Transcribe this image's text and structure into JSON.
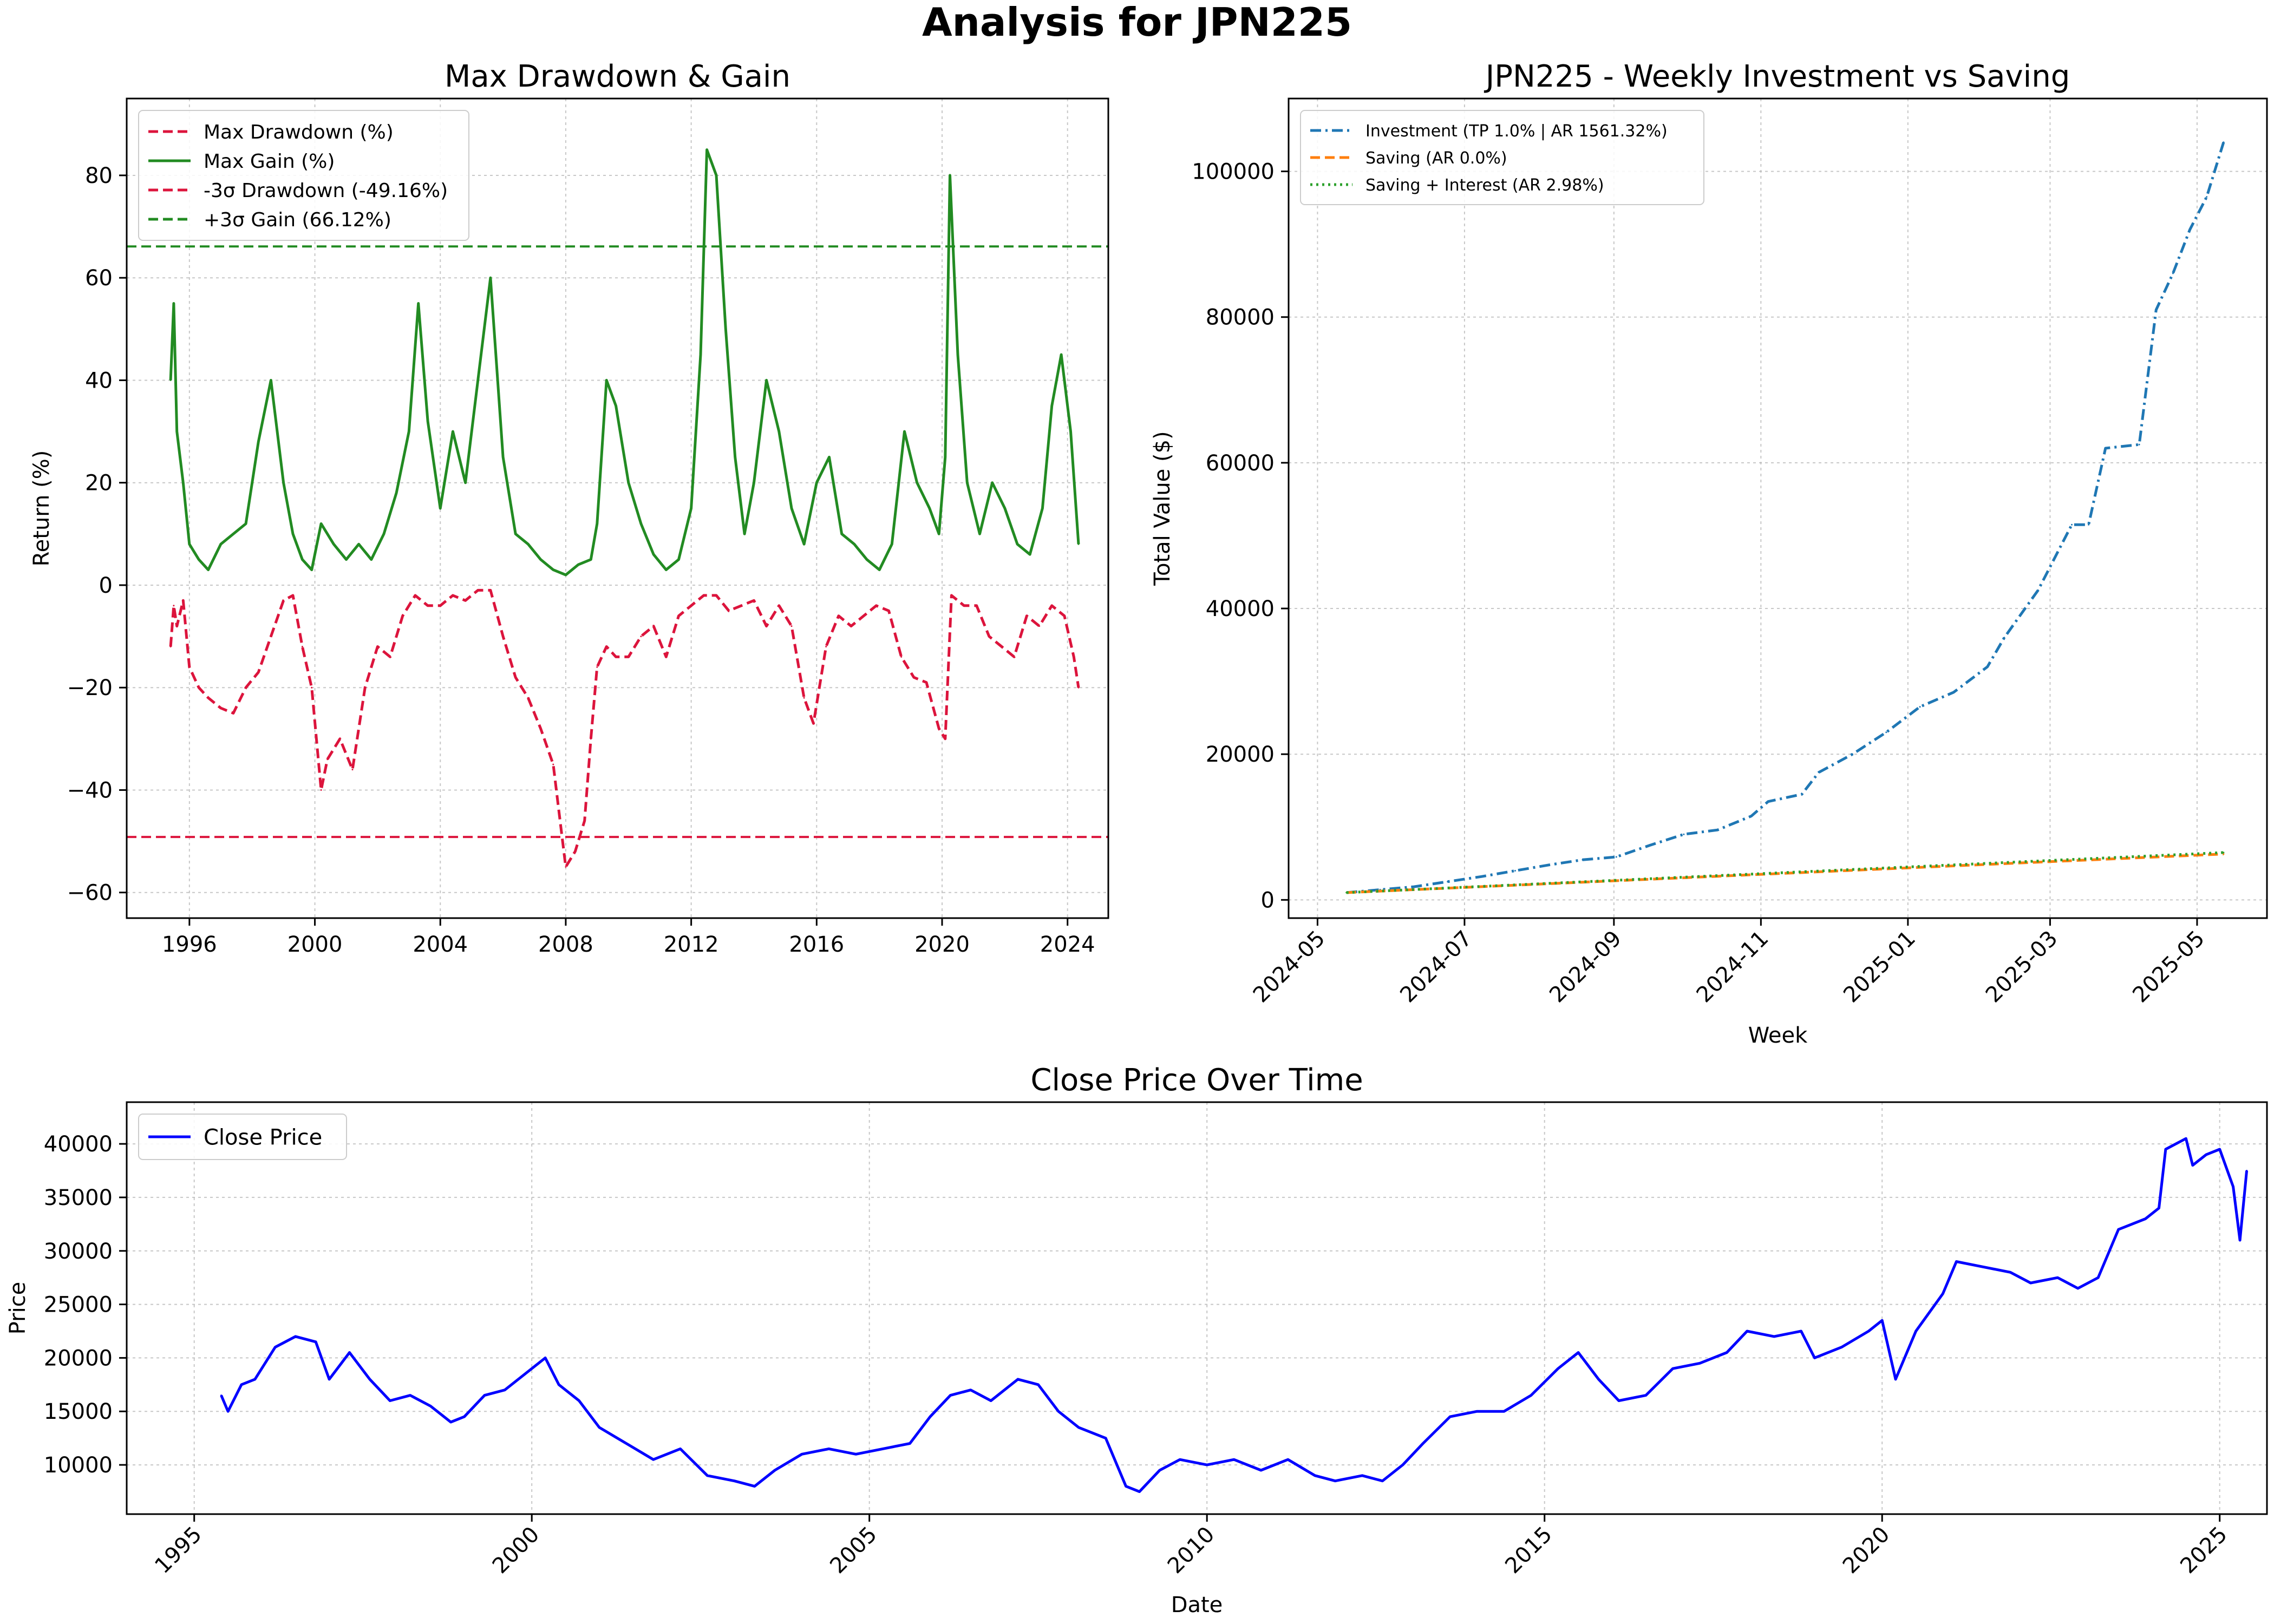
{
  "suptitle": "Analysis for JPN225",
  "chart_data": [
    {
      "id": "drawdown_gain",
      "type": "line",
      "title": "Max Drawdown & Gain",
      "xlabel": "",
      "ylabel": "Return (%)",
      "xlim": [
        1994.0,
        2025.3
      ],
      "ylim": [
        -65,
        95
      ],
      "xticks": [
        1996,
        2000,
        2004,
        2008,
        2012,
        2016,
        2020,
        2024
      ],
      "yticks": [
        -60,
        -40,
        -20,
        0,
        20,
        40,
        60,
        80
      ],
      "grid": true,
      "legend_position": "upper left",
      "series": [
        {
          "name": "Max Drawdown (%)",
          "color": "#dc143c",
          "dash": "dashed",
          "x": [
            1995.4,
            1995.5,
            1995.6,
            1995.8,
            1996.0,
            1996.3,
            1996.6,
            1997.0,
            1997.4,
            1997.8,
            1998.2,
            1998.6,
            1999.0,
            1999.3,
            1999.6,
            1999.9,
            2000.2,
            2000.4,
            2000.8,
            2001.2,
            2001.6,
            2002.0,
            2002.4,
            2002.8,
            2003.2,
            2003.6,
            2004.0,
            2004.4,
            2004.8,
            2005.2,
            2005.6,
            2006.0,
            2006.4,
            2006.8,
            2007.2,
            2007.6,
            2007.8,
            2008.0,
            2008.3,
            2008.6,
            2008.8,
            2009.0,
            2009.3,
            2009.6,
            2010.0,
            2010.4,
            2010.8,
            2011.2,
            2011.6,
            2012.0,
            2012.4,
            2012.8,
            2013.2,
            2013.6,
            2014.0,
            2014.4,
            2014.8,
            2015.2,
            2015.6,
            2015.9,
            2016.3,
            2016.7,
            2017.1,
            2017.5,
            2017.9,
            2018.3,
            2018.7,
            2019.1,
            2019.5,
            2019.9,
            2020.1,
            2020.3,
            2020.7,
            2021.1,
            2021.5,
            2021.9,
            2022.3,
            2022.7,
            2023.1,
            2023.5,
            2023.9,
            2024.2,
            2024.35
          ],
          "y": [
            -12,
            -4,
            -8,
            -3,
            -16,
            -20,
            -22,
            -24,
            -25,
            -20,
            -17,
            -10,
            -3,
            -2,
            -12,
            -20,
            -40,
            -34,
            -30,
            -36,
            -20,
            -12,
            -14,
            -6,
            -2,
            -4,
            -4,
            -2,
            -3,
            -1,
            -1,
            -10,
            -18,
            -22,
            -28,
            -35,
            -45,
            -55,
            -52,
            -46,
            -30,
            -16,
            -12,
            -14,
            -14,
            -10,
            -8,
            -14,
            -6,
            -4,
            -2,
            -2,
            -5,
            -4,
            -3,
            -8,
            -4,
            -8,
            -22,
            -27,
            -12,
            -6,
            -8,
            -6,
            -4,
            -5,
            -14,
            -18,
            -19,
            -28,
            -30,
            -2,
            -4,
            -4,
            -10,
            -12,
            -14,
            -6,
            -8,
            -4,
            -6,
            -14,
            -20
          ]
        },
        {
          "name": "Max Gain (%)",
          "color": "#228b22",
          "dash": "solid",
          "x": [
            1995.4,
            1995.5,
            1995.6,
            1995.8,
            1996.0,
            1996.3,
            1996.6,
            1997.0,
            1997.4,
            1997.8,
            1998.2,
            1998.6,
            1999.0,
            1999.3,
            1999.6,
            1999.9,
            2000.2,
            2000.6,
            2001.0,
            2001.4,
            2001.8,
            2002.2,
            2002.6,
            2003.0,
            2003.3,
            2003.6,
            2004.0,
            2004.4,
            2004.8,
            2005.2,
            2005.6,
            2006.0,
            2006.4,
            2006.8,
            2007.2,
            2007.6,
            2008.0,
            2008.4,
            2008.8,
            2009.0,
            2009.3,
            2009.6,
            2010.0,
            2010.4,
            2010.8,
            2011.2,
            2011.6,
            2012.0,
            2012.3,
            2012.5,
            2012.8,
            2013.1,
            2013.4,
            2013.7,
            2014.0,
            2014.4,
            2014.8,
            2015.2,
            2015.6,
            2016.0,
            2016.4,
            2016.8,
            2017.2,
            2017.6,
            2018.0,
            2018.4,
            2018.8,
            2019.2,
            2019.6,
            2019.9,
            2020.1,
            2020.25,
            2020.5,
            2020.8,
            2021.2,
            2021.6,
            2022.0,
            2022.4,
            2022.8,
            2023.2,
            2023.5,
            2023.8,
            2024.1,
            2024.35
          ],
          "y": [
            40,
            55,
            30,
            20,
            8,
            5,
            3,
            8,
            10,
            12,
            28,
            40,
            20,
            10,
            5,
            3,
            12,
            8,
            5,
            8,
            5,
            10,
            18,
            30,
            55,
            32,
            15,
            30,
            20,
            40,
            60,
            25,
            10,
            8,
            5,
            3,
            2,
            4,
            5,
            12,
            40,
            35,
            20,
            12,
            6,
            3,
            5,
            15,
            45,
            85,
            80,
            50,
            25,
            10,
            20,
            40,
            30,
            15,
            8,
            20,
            25,
            10,
            8,
            5,
            3,
            8,
            30,
            20,
            15,
            10,
            25,
            80,
            45,
            20,
            10,
            20,
            15,
            8,
            6,
            15,
            35,
            45,
            30,
            8
          ]
        },
        {
          "name": "-3σ Drawdown (-49.16%)",
          "color": "#dc143c",
          "dash": "dashed",
          "y_const": -49.16
        },
        {
          "name": "+3σ Gain (66.12%)",
          "color": "#228b22",
          "dash": "dashed",
          "y_const": 66.12
        }
      ]
    },
    {
      "id": "weekly_investment",
      "type": "line",
      "title": "JPN225 - Weekly Investment vs Saving",
      "xlabel": "Week",
      "ylabel": "Total Value ($)",
      "x_type": "date",
      "xlim": [
        "2024-04-19",
        "2025-05-30"
      ],
      "ylim": [
        -2500,
        110000
      ],
      "xticks": [
        "2024-05",
        "2024-07",
        "2024-09",
        "2024-11",
        "2025-01",
        "2025-03",
        "2025-05"
      ],
      "yticks": [
        0,
        20000,
        40000,
        60000,
        80000,
        100000
      ],
      "grid": true,
      "legend_position": "upper left",
      "series": [
        {
          "name": "Investment (TP 1.0% | AR 1561.32%)",
          "color": "#1f77b4",
          "dash": "dashdot",
          "x": [
            "2024-05-13",
            "2024-05-27",
            "2024-06-10",
            "2024-06-24",
            "2024-07-08",
            "2024-07-22",
            "2024-08-05",
            "2024-08-19",
            "2024-09-02",
            "2024-09-16",
            "2024-09-30",
            "2024-10-14",
            "2024-10-28",
            "2024-11-04",
            "2024-11-18",
            "2024-11-25",
            "2024-12-09",
            "2024-12-23",
            "2025-01-06",
            "2025-01-20",
            "2025-02-03",
            "2025-02-10",
            "2025-02-24",
            "2025-03-10",
            "2025-03-17",
            "2025-03-24",
            "2025-04-07",
            "2025-04-14",
            "2025-04-21",
            "2025-04-28",
            "2025-05-05",
            "2025-05-12"
          ],
          "y": [
            1000,
            1400,
            1800,
            2500,
            3200,
            4000,
            4800,
            5500,
            5900,
            7500,
            9000,
            9600,
            11500,
            13500,
            14500,
            17500,
            20000,
            23000,
            26500,
            28500,
            32000,
            36000,
            42500,
            51500,
            51500,
            62000,
            62500,
            81000,
            86000,
            92000,
            96500,
            104000
          ]
        },
        {
          "name": "Saving (AR 0.0%)",
          "color": "#ff7f0e",
          "dash": "dashed",
          "x": [
            "2024-05-13",
            "2025-05-12"
          ],
          "y": [
            1000,
            6300
          ]
        },
        {
          "name": "Saving + Interest (AR 2.98%)",
          "color": "#2ca02c",
          "dash": "dotted",
          "x": [
            "2024-05-13",
            "2025-05-12"
          ],
          "y": [
            1000,
            6500
          ]
        }
      ]
    },
    {
      "id": "close_price",
      "type": "line",
      "title": "Close Price Over Time",
      "xlabel": "Date",
      "ylabel": "Price",
      "xlim": [
        1994.0,
        2025.7
      ],
      "ylim": [
        5400,
        43900
      ],
      "xticks": [
        1995,
        2000,
        2005,
        2010,
        2015,
        2020,
        2025
      ],
      "yticks": [
        10000,
        15000,
        20000,
        25000,
        30000,
        35000,
        40000
      ],
      "grid": true,
      "legend_position": "upper left",
      "series": [
        {
          "name": "Close Price",
          "color": "#0000ff",
          "dash": "solid",
          "x": [
            1995.4,
            1995.5,
            1995.7,
            1995.9,
            1996.2,
            1996.5,
            1996.8,
            1997.0,
            1997.3,
            1997.6,
            1997.9,
            1998.2,
            1998.5,
            1998.8,
            1999.0,
            1999.3,
            1999.6,
            1999.9,
            2000.2,
            2000.4,
            2000.7,
            2001.0,
            2001.4,
            2001.8,
            2002.2,
            2002.6,
            2003.0,
            2003.3,
            2003.6,
            2004.0,
            2004.4,
            2004.8,
            2005.2,
            2005.6,
            2005.9,
            2006.2,
            2006.5,
            2006.8,
            2007.2,
            2007.5,
            2007.8,
            2008.1,
            2008.5,
            2008.8,
            2009.0,
            2009.3,
            2009.6,
            2010.0,
            2010.4,
            2010.8,
            2011.2,
            2011.6,
            2011.9,
            2012.3,
            2012.6,
            2012.9,
            2013.2,
            2013.6,
            2014.0,
            2014.4,
            2014.8,
            2015.2,
            2015.5,
            2015.8,
            2016.1,
            2016.5,
            2016.9,
            2017.3,
            2017.7,
            2018.0,
            2018.4,
            2018.8,
            2019.0,
            2019.4,
            2019.8,
            2020.0,
            2020.2,
            2020.5,
            2020.9,
            2021.1,
            2021.5,
            2021.9,
            2022.2,
            2022.6,
            2022.9,
            2023.2,
            2023.5,
            2023.9,
            2024.1,
            2024.2,
            2024.5,
            2024.6,
            2024.8,
            2025.0,
            2025.2,
            2025.3,
            2025.4
          ],
          "y": [
            16500,
            15000,
            17500,
            18000,
            21000,
            22000,
            21500,
            18000,
            20500,
            18000,
            16000,
            16500,
            15500,
            14000,
            14500,
            16500,
            17000,
            18500,
            20000,
            17500,
            16000,
            13500,
            12000,
            10500,
            11500,
            9000,
            8500,
            8000,
            9500,
            11000,
            11500,
            11000,
            11500,
            12000,
            14500,
            16500,
            17000,
            16000,
            18000,
            17500,
            15000,
            13500,
            12500,
            8000,
            7500,
            9500,
            10500,
            10000,
            10500,
            9500,
            10500,
            9000,
            8500,
            9000,
            8500,
            10000,
            12000,
            14500,
            15000,
            15000,
            16500,
            19000,
            20500,
            18000,
            16000,
            16500,
            19000,
            19500,
            20500,
            22500,
            22000,
            22500,
            20000,
            21000,
            22500,
            23500,
            18000,
            22500,
            26000,
            29000,
            28500,
            28000,
            27000,
            27500,
            26500,
            27500,
            32000,
            33000,
            34000,
            39500,
            40500,
            38000,
            39000,
            39500,
            36000,
            31000,
            37500
          ]
        }
      ]
    }
  ]
}
